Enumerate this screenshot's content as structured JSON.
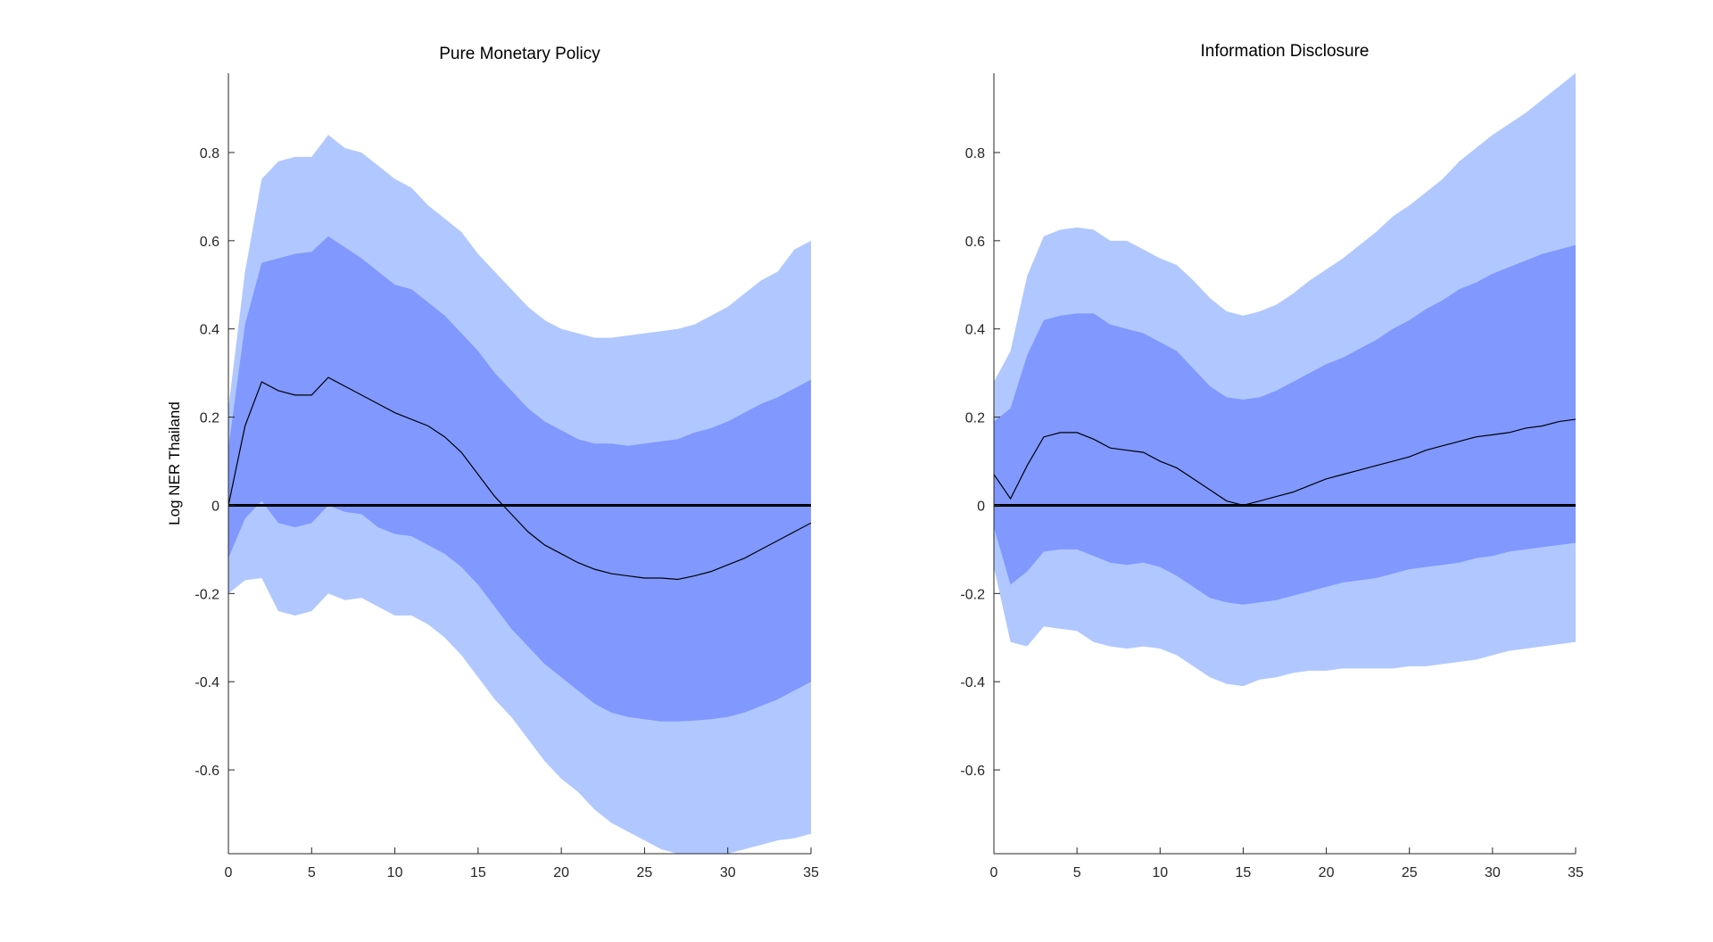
{
  "colors": {
    "outer_band": "#b0c8ff",
    "inner_band": "#8098ff",
    "median_line": "#000000",
    "zero_line": "#000000",
    "axis": "#262626"
  },
  "chart_data": [
    {
      "type": "area",
      "title": "Pure Monetary Policy",
      "xlabel": "",
      "ylabel": "Log NER Thailand",
      "xlim": [
        0,
        35
      ],
      "ylim": [
        -0.79,
        0.98
      ],
      "xticks": [
        0,
        5,
        10,
        15,
        20,
        25,
        30,
        35
      ],
      "yticks": [
        -0.6,
        -0.4,
        -0.2,
        0,
        0.2,
        0.4,
        0.6,
        0.8
      ],
      "ytick_labels": [
        "-0.6",
        "-0.4",
        "-0.2",
        "0",
        "0.2",
        "0.4",
        "0.6",
        "0.8"
      ],
      "x": [
        0,
        1,
        2,
        3,
        4,
        5,
        6,
        7,
        8,
        9,
        10,
        11,
        12,
        13,
        14,
        15,
        16,
        17,
        18,
        19,
        20,
        21,
        22,
        23,
        24,
        25,
        26,
        27,
        28,
        29,
        30,
        31,
        32,
        33,
        34,
        35
      ],
      "series": [
        {
          "name": "outer_upper",
          "values": [
            0.22,
            0.53,
            0.74,
            0.78,
            0.79,
            0.79,
            0.84,
            0.81,
            0.8,
            0.77,
            0.74,
            0.72,
            0.68,
            0.65,
            0.62,
            0.57,
            0.53,
            0.49,
            0.45,
            0.42,
            0.4,
            0.39,
            0.38,
            0.38,
            0.385,
            0.39,
            0.395,
            0.4,
            0.41,
            0.43,
            0.45,
            0.48,
            0.51,
            0.53,
            0.58,
            0.6
          ]
        },
        {
          "name": "inner_upper",
          "values": [
            0.13,
            0.41,
            0.55,
            0.56,
            0.57,
            0.575,
            0.61,
            0.585,
            0.56,
            0.53,
            0.5,
            0.49,
            0.46,
            0.43,
            0.39,
            0.35,
            0.3,
            0.26,
            0.22,
            0.19,
            0.17,
            0.15,
            0.14,
            0.14,
            0.135,
            0.14,
            0.145,
            0.15,
            0.165,
            0.175,
            0.19,
            0.21,
            0.23,
            0.245,
            0.265,
            0.285
          ]
        },
        {
          "name": "median",
          "values": [
            0.0,
            0.18,
            0.28,
            0.26,
            0.25,
            0.25,
            0.29,
            0.27,
            0.25,
            0.23,
            0.21,
            0.195,
            0.18,
            0.155,
            0.12,
            0.07,
            0.02,
            -0.02,
            -0.06,
            -0.09,
            -0.11,
            -0.13,
            -0.145,
            -0.155,
            -0.16,
            -0.165,
            -0.165,
            -0.168,
            -0.16,
            -0.15,
            -0.135,
            -0.12,
            -0.1,
            -0.08,
            -0.06,
            -0.04
          ]
        },
        {
          "name": "inner_lower",
          "values": [
            -0.12,
            -0.03,
            0.01,
            -0.04,
            -0.05,
            -0.04,
            0.0,
            -0.015,
            -0.02,
            -0.05,
            -0.065,
            -0.07,
            -0.09,
            -0.11,
            -0.14,
            -0.18,
            -0.23,
            -0.28,
            -0.32,
            -0.36,
            -0.39,
            -0.42,
            -0.45,
            -0.47,
            -0.48,
            -0.485,
            -0.49,
            -0.49,
            -0.488,
            -0.485,
            -0.48,
            -0.47,
            -0.455,
            -0.44,
            -0.42,
            -0.4
          ]
        },
        {
          "name": "outer_lower",
          "values": [
            -0.2,
            -0.17,
            -0.165,
            -0.24,
            -0.25,
            -0.24,
            -0.2,
            -0.215,
            -0.21,
            -0.23,
            -0.25,
            -0.25,
            -0.27,
            -0.3,
            -0.34,
            -0.39,
            -0.44,
            -0.48,
            -0.53,
            -0.58,
            -0.62,
            -0.65,
            -0.69,
            -0.72,
            -0.74,
            -0.76,
            -0.78,
            -0.79,
            -0.79,
            -0.79,
            -0.79,
            -0.78,
            -0.77,
            -0.76,
            -0.755,
            -0.745
          ]
        }
      ]
    },
    {
      "type": "area",
      "title": "Information Disclosure",
      "xlabel": "",
      "ylabel": "",
      "xlim": [
        0,
        35
      ],
      "ylim": [
        -0.79,
        0.98
      ],
      "xticks": [
        0,
        5,
        10,
        15,
        20,
        25,
        30,
        35
      ],
      "yticks": [
        -0.6,
        -0.4,
        -0.2,
        0,
        0.2,
        0.4,
        0.6,
        0.8
      ],
      "ytick_labels": [
        "-0.6",
        "-0.4",
        "-0.2",
        "0",
        "0.2",
        "0.4",
        "0.6",
        "0.8"
      ],
      "x": [
        0,
        1,
        2,
        3,
        4,
        5,
        6,
        7,
        8,
        9,
        10,
        11,
        12,
        13,
        14,
        15,
        16,
        17,
        18,
        19,
        20,
        21,
        22,
        23,
        24,
        25,
        26,
        27,
        28,
        29,
        30,
        31,
        32,
        33,
        34,
        35
      ],
      "series": [
        {
          "name": "outer_upper",
          "values": [
            0.28,
            0.35,
            0.52,
            0.61,
            0.625,
            0.63,
            0.625,
            0.6,
            0.6,
            0.58,
            0.56,
            0.545,
            0.51,
            0.47,
            0.44,
            0.43,
            0.44,
            0.455,
            0.48,
            0.51,
            0.535,
            0.56,
            0.59,
            0.62,
            0.655,
            0.68,
            0.71,
            0.74,
            0.78,
            0.81,
            0.84,
            0.865,
            0.89,
            0.92,
            0.95,
            0.98
          ]
        },
        {
          "name": "inner_upper",
          "values": [
            0.19,
            0.22,
            0.34,
            0.42,
            0.43,
            0.435,
            0.435,
            0.41,
            0.4,
            0.39,
            0.37,
            0.35,
            0.31,
            0.27,
            0.245,
            0.24,
            0.245,
            0.26,
            0.28,
            0.3,
            0.32,
            0.335,
            0.355,
            0.375,
            0.4,
            0.42,
            0.445,
            0.465,
            0.49,
            0.505,
            0.525,
            0.54,
            0.555,
            0.57,
            0.58,
            0.59
          ]
        },
        {
          "name": "median",
          "values": [
            0.07,
            0.015,
            0.09,
            0.155,
            0.165,
            0.165,
            0.15,
            0.13,
            0.125,
            0.12,
            0.1,
            0.085,
            0.06,
            0.035,
            0.01,
            0.0,
            0.01,
            0.02,
            0.03,
            0.045,
            0.06,
            0.07,
            0.08,
            0.09,
            0.1,
            0.11,
            0.125,
            0.135,
            0.145,
            0.155,
            0.16,
            0.165,
            0.175,
            0.18,
            0.19,
            0.195
          ]
        },
        {
          "name": "inner_lower",
          "values": [
            -0.05,
            -0.18,
            -0.15,
            -0.105,
            -0.1,
            -0.1,
            -0.115,
            -0.13,
            -0.135,
            -0.13,
            -0.14,
            -0.16,
            -0.185,
            -0.21,
            -0.22,
            -0.225,
            -0.22,
            -0.215,
            -0.205,
            -0.195,
            -0.185,
            -0.175,
            -0.17,
            -0.165,
            -0.155,
            -0.145,
            -0.14,
            -0.135,
            -0.13,
            -0.12,
            -0.115,
            -0.105,
            -0.1,
            -0.095,
            -0.09,
            -0.085
          ]
        },
        {
          "name": "outer_lower",
          "values": [
            -0.14,
            -0.31,
            -0.32,
            -0.275,
            -0.28,
            -0.285,
            -0.31,
            -0.32,
            -0.325,
            -0.32,
            -0.325,
            -0.34,
            -0.365,
            -0.39,
            -0.405,
            -0.41,
            -0.395,
            -0.39,
            -0.38,
            -0.375,
            -0.375,
            -0.37,
            -0.37,
            -0.37,
            -0.37,
            -0.365,
            -0.365,
            -0.36,
            -0.355,
            -0.35,
            -0.34,
            -0.33,
            -0.325,
            -0.32,
            -0.315,
            -0.31
          ]
        }
      ]
    }
  ]
}
